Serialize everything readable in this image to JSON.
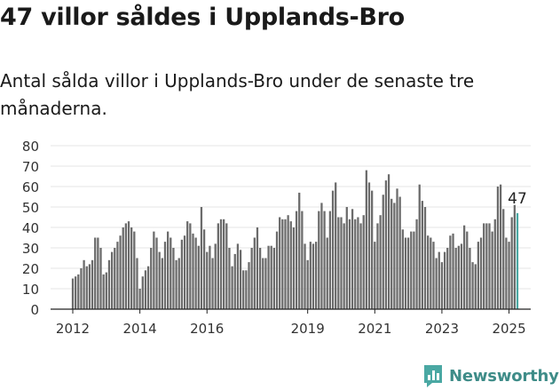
{
  "title": "47 villor såldes i Upplands-Bro",
  "subtitle": "Antal sålda villor i Upplands-Bro under de senaste tre månaderna.",
  "brand": {
    "name": "Newsworthy",
    "logo_icon": "newsworthy-chart-bubble-icon"
  },
  "colors": {
    "bar": "#6b6b6b",
    "highlight": "#4aa8a3",
    "brand": "#3e8c88",
    "grid": "#e6e6e6"
  },
  "chart_data": {
    "type": "bar",
    "title": "47 villor såldes i Upplands-Bro",
    "xlabel": "",
    "ylabel": "",
    "ylim": [
      0,
      80
    ],
    "yticks": [
      0,
      10,
      20,
      30,
      40,
      50,
      60,
      70,
      80
    ],
    "grid": true,
    "start": "2012-01",
    "end": "2025-04",
    "xticks": [
      {
        "label": "2012",
        "month": "2012-01"
      },
      {
        "label": "2014",
        "month": "2014-01"
      },
      {
        "label": "2016",
        "month": "2016-01"
      },
      {
        "label": "2019",
        "month": "2019-01"
      },
      {
        "label": "2021",
        "month": "2021-01"
      },
      {
        "label": "2023",
        "month": "2023-01"
      },
      {
        "label": "2025",
        "month": "2025-01"
      }
    ],
    "highlight_label": "47",
    "series": [
      {
        "values": [
          15,
          16,
          17,
          20,
          24,
          21,
          22,
          24,
          35,
          35,
          30,
          17,
          18,
          24,
          28,
          30,
          33,
          36,
          40,
          42,
          43,
          40,
          38,
          25,
          10,
          16,
          19,
          21,
          30,
          38,
          35,
          28,
          25,
          33,
          38,
          35,
          30,
          24,
          25,
          34,
          36,
          43,
          42,
          37,
          35,
          31,
          50,
          39,
          28,
          31,
          25,
          32,
          42,
          44,
          44,
          42,
          30,
          21,
          27,
          32,
          29,
          19,
          19,
          23,
          30,
          35,
          40,
          30,
          25,
          25,
          31,
          31,
          30,
          38,
          45,
          44,
          44,
          46,
          43,
          40,
          48,
          57,
          48,
          32,
          24,
          33,
          32,
          33,
          48,
          52,
          48,
          35,
          48,
          58,
          62,
          45,
          45,
          42,
          50,
          44,
          49,
          44,
          45,
          42,
          46,
          68,
          62,
          58,
          33,
          42,
          46,
          56,
          63,
          66,
          54,
          52,
          59,
          55,
          39,
          35,
          35,
          38,
          38,
          44,
          61,
          53,
          50,
          36,
          35,
          33,
          25,
          28,
          23,
          28,
          30,
          36,
          37,
          30,
          31,
          32,
          41,
          38,
          30,
          23,
          22,
          33,
          35,
          42,
          42,
          42,
          38,
          44,
          60,
          61,
          49,
          35,
          33,
          45,
          51,
          47
        ]
      }
    ]
  }
}
